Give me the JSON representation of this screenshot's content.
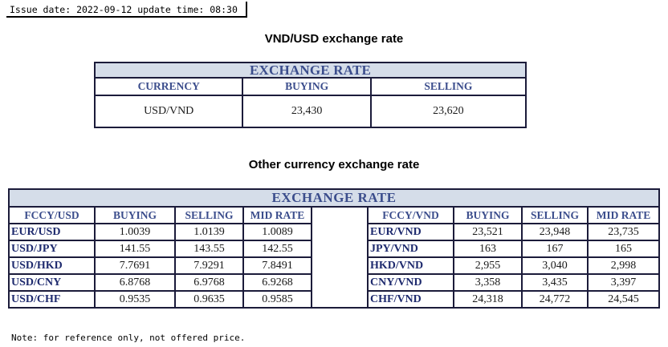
{
  "issue_line": "Issue date: 2022-09-12 update time: 08:30",
  "title_usd": "VND/USD exchange rate",
  "title_other": "Other currency exchange rate",
  "vnd_usd_table": {
    "banner": "EXCHANGE RATE",
    "headers": [
      "CURRENCY",
      "BUYING",
      "SELLING"
    ],
    "row": [
      "USD/VND",
      "23,430",
      "23,620"
    ]
  },
  "other_table": {
    "banner": "EXCHANGE RATE",
    "left_headers": [
      "FCCY/USD",
      "BUYING",
      "SELLING",
      "MID RATE"
    ],
    "right_headers": [
      "FCCY/VND",
      "BUYING",
      "SELLING",
      "MID RATE"
    ],
    "left_rows": [
      [
        "EUR/USD",
        "1.0039",
        "1.0139",
        "1.0089"
      ],
      [
        "USD/JPY",
        "141.55",
        "143.55",
        "142.55"
      ],
      [
        "USD/HKD",
        "7.7691",
        "7.9291",
        "7.8491"
      ],
      [
        "USD/CNY",
        "6.8768",
        "6.9768",
        "6.9268"
      ],
      [
        "USD/CHF",
        "0.9535",
        "0.9635",
        "0.9585"
      ]
    ],
    "right_rows": [
      [
        "EUR/VND",
        "23,521",
        "23,948",
        "23,735"
      ],
      [
        "JPY/VND",
        "163",
        "167",
        "165"
      ],
      [
        "HKD/VND",
        "2,955",
        "3,040",
        "2,998"
      ],
      [
        "CNY/VND",
        "3,358",
        "3,435",
        "3,397"
      ],
      [
        "CHF/VND",
        "24,318",
        "24,772",
        "24,545"
      ]
    ]
  },
  "note": "Note: for reference only, not offered price."
}
